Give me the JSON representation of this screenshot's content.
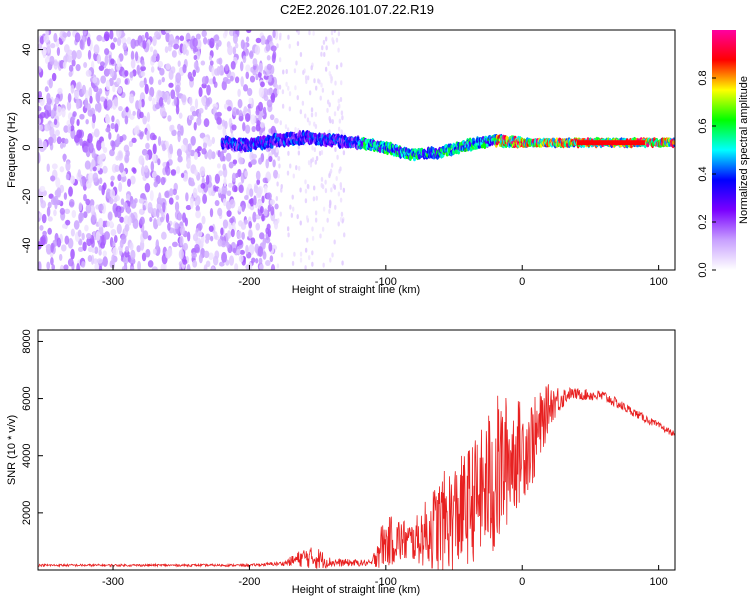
{
  "figure_title": "C2E2.2026.101.07.22.R19",
  "chart_data": [
    {
      "type": "heatmap",
      "title": "C2E2.2026.101.07.22.R19",
      "xlabel": "Height of straight line (km)",
      "ylabel": "Frequency (Hz)",
      "xlim": [
        -355,
        112
      ],
      "ylim": [
        -50,
        48
      ],
      "xticks": [
        -300,
        -200,
        -100,
        0,
        100
      ],
      "yticks": [
        -40,
        -20,
        0,
        20,
        40
      ],
      "colorbar": {
        "label": "Normalized spectral amplitude",
        "range": [
          0.0,
          1.0
        ],
        "ticks": [
          0.0,
          0.2,
          0.4,
          0.6,
          0.8
        ],
        "colors": [
          "#ffffff",
          "#c8a0ff",
          "#7a00ff",
          "#0000ff",
          "#00ffff",
          "#00ff00",
          "#ffff00",
          "#ff0000",
          "#ff00a0"
        ]
      },
      "features": {
        "noise_region_km": [
          -355,
          -180
        ],
        "sparse_region_km": [
          -180,
          -130
        ],
        "signal_start_km": -220,
        "signal_trace": [
          {
            "x": -220,
            "f": 2
          },
          {
            "x": -200,
            "f": 1
          },
          {
            "x": -180,
            "f": 3
          },
          {
            "x": -160,
            "f": 4
          },
          {
            "x": -140,
            "f": 3
          },
          {
            "x": -120,
            "f": 2
          },
          {
            "x": -100,
            "f": 0
          },
          {
            "x": -80,
            "f": -3
          },
          {
            "x": -60,
            "f": -2
          },
          {
            "x": -40,
            "f": 1
          },
          {
            "x": -20,
            "f": 3
          },
          {
            "x": 0,
            "f": 2
          },
          {
            "x": 20,
            "f": 2
          },
          {
            "x": 40,
            "f": 2
          },
          {
            "x": 60,
            "f": 2
          },
          {
            "x": 80,
            "f": 2
          },
          {
            "x": 100,
            "f": 2
          },
          {
            "x": 112,
            "f": 2
          }
        ]
      }
    },
    {
      "type": "line",
      "xlabel": "Height of straight line (km)",
      "ylabel": "SNR (10 * v/v)",
      "xlim": [
        -355,
        112
      ],
      "ylim": [
        0,
        8400
      ],
      "xticks": [
        -300,
        -200,
        -100,
        0,
        100
      ],
      "yticks": [
        2000,
        4000,
        6000,
        8000
      ],
      "line_color": "#e82020",
      "series": [
        {
          "name": "SNR",
          "envelope": [
            {
              "x": -355,
              "base": 150,
              "amp": 80
            },
            {
              "x": -250,
              "base": 150,
              "amp": 80
            },
            {
              "x": -200,
              "base": 150,
              "amp": 80
            },
            {
              "x": -175,
              "base": 200,
              "amp": 150
            },
            {
              "x": -160,
              "base": 300,
              "amp": 700
            },
            {
              "x": -150,
              "base": 250,
              "amp": 800
            },
            {
              "x": -140,
              "base": 200,
              "amp": 300
            },
            {
              "x": -110,
              "base": 200,
              "amp": 200
            },
            {
              "x": -105,
              "base": 500,
              "amp": 1500
            },
            {
              "x": -95,
              "base": 700,
              "amp": 1800
            },
            {
              "x": -80,
              "base": 700,
              "amp": 1400
            },
            {
              "x": -60,
              "base": 900,
              "amp": 3500
            },
            {
              "x": -45,
              "base": 1200,
              "amp": 4000
            },
            {
              "x": -30,
              "base": 1800,
              "amp": 4500
            },
            {
              "x": -20,
              "base": 2000,
              "amp": 6000
            },
            {
              "x": -10,
              "base": 3000,
              "amp": 4500
            },
            {
              "x": 0,
              "base": 3500,
              "amp": 3500
            },
            {
              "x": 10,
              "base": 4000,
              "amp": 3000
            },
            {
              "x": 20,
              "base": 5500,
              "amp": 1500
            },
            {
              "x": 35,
              "base": 6100,
              "amp": 400
            },
            {
              "x": 60,
              "base": 6000,
              "amp": 400
            },
            {
              "x": 80,
              "base": 5500,
              "amp": 300
            },
            {
              "x": 100,
              "base": 5000,
              "amp": 250
            },
            {
              "x": 112,
              "base": 4700,
              "amp": 200
            }
          ]
        }
      ]
    }
  ]
}
